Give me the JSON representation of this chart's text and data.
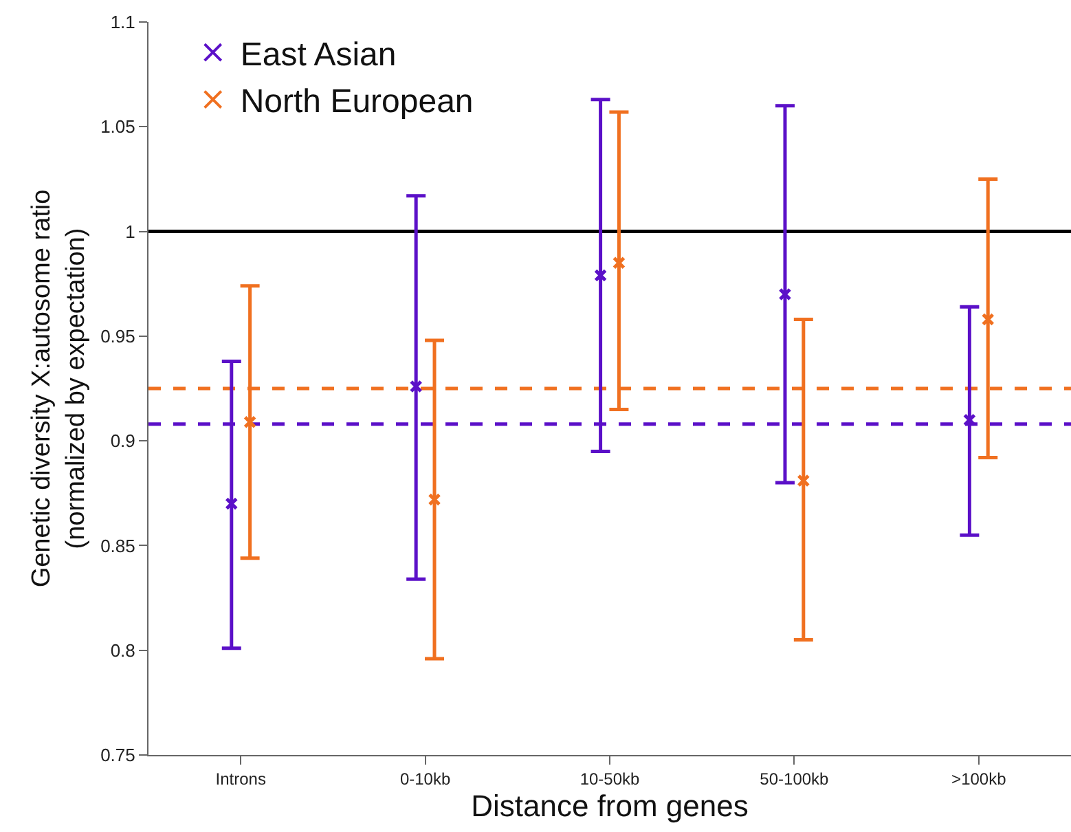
{
  "chart_data": {
    "type": "scatter",
    "xlabel": "Distance from genes",
    "ylabel": "Genetic diversity X:autosome ratio\n(normalized by expectation)",
    "categories": [
      "Introns",
      "0-10kb",
      "10-50kb",
      "50-100kb",
      ">100kb"
    ],
    "series": [
      {
        "name": "East Asian",
        "color": "#5b10c8",
        "values": [
          0.87,
          0.926,
          0.979,
          0.97,
          0.91
        ],
        "errors": [
          [
            0.801,
            0.938
          ],
          [
            0.834,
            1.017
          ],
          [
            0.895,
            1.063
          ],
          [
            0.88,
            1.06
          ],
          [
            0.855,
            0.964
          ]
        ]
      },
      {
        "name": "North European",
        "color": "#f07020",
        "values": [
          0.909,
          0.872,
          0.985,
          0.881,
          0.958
        ],
        "errors": [
          [
            0.844,
            0.974
          ],
          [
            0.796,
            0.948
          ],
          [
            0.915,
            1.057
          ],
          [
            0.805,
            0.958
          ],
          [
            0.892,
            1.025
          ]
        ]
      }
    ],
    "ylim": [
      0.75,
      1.1
    ],
    "yticks": [
      0.75,
      0.8,
      0.85,
      0.9,
      0.95,
      1,
      1.05,
      1.1
    ],
    "ref_lines": [
      {
        "axis": "y",
        "value": 1,
        "color": "#000000",
        "line_style": "solid"
      },
      {
        "axis": "y",
        "value": 0.925,
        "color": "#f07020",
        "line_style": "dashed"
      },
      {
        "axis": "y",
        "value": 0.908,
        "color": "#5b10c8",
        "line_style": "dashed"
      }
    ],
    "marker": "cross",
    "grid": false,
    "legend": "top left"
  }
}
